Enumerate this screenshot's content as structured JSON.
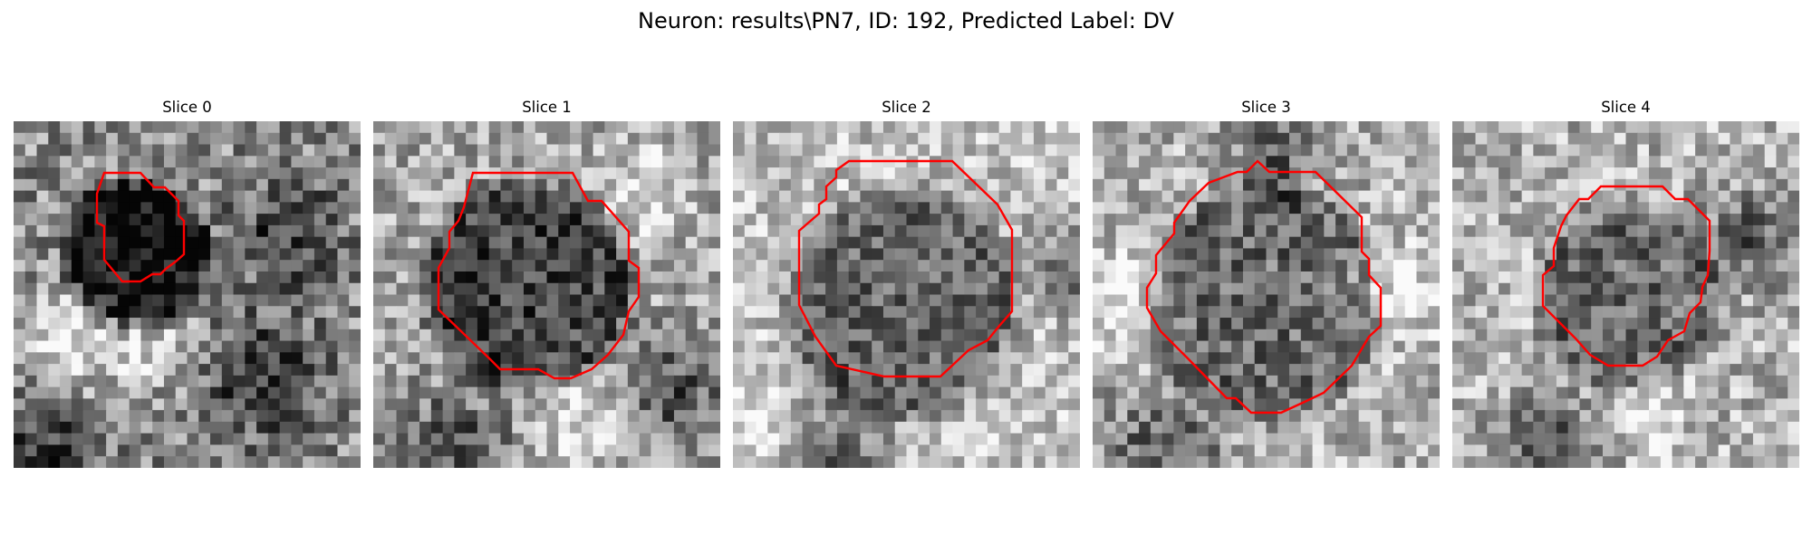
{
  "figure": {
    "title": "Neuron: results\\PN7, ID: 192, Predicted Label: DV"
  },
  "slices": [
    {
      "label": "Slice 0"
    },
    {
      "label": "Slice 1"
    },
    {
      "label": "Slice 2"
    },
    {
      "label": "Slice 3"
    },
    {
      "label": "Slice 4"
    }
  ],
  "contour_color": "#ff0000"
}
